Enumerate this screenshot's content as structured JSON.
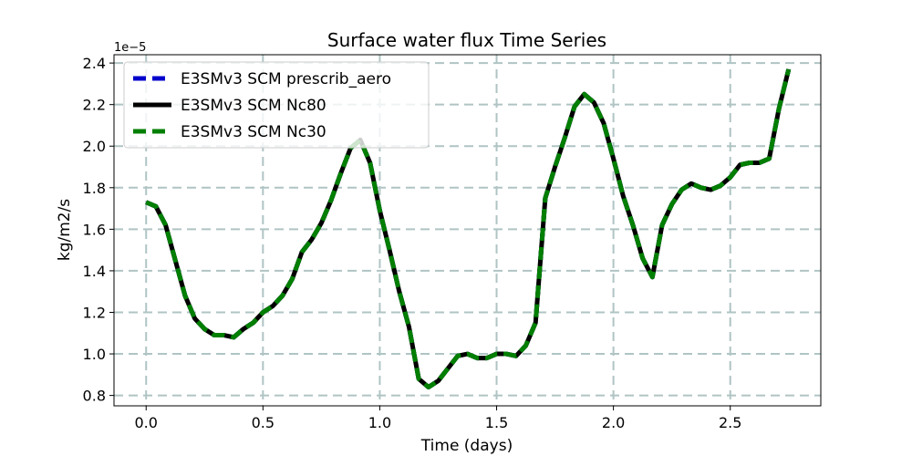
{
  "chart_data": {
    "type": "line",
    "title": "Surface water flux Time Series",
    "xlabel": "Time (days)",
    "ylabel": "kg/m2/s",
    "y_offset_label": "1e−5",
    "xlim": [
      -0.1375,
      2.8875
    ],
    "ylim": [
      0.75,
      2.44
    ],
    "xticks": [
      0.0,
      0.5,
      1.0,
      1.5,
      2.0,
      2.5
    ],
    "xtick_labels": [
      "0.0",
      "0.5",
      "1.0",
      "1.5",
      "2.0",
      "2.5"
    ],
    "yticks": [
      0.8,
      1.0,
      1.2,
      1.4,
      1.6,
      1.8,
      2.0,
      2.2,
      2.4
    ],
    "ytick_labels": [
      "0.8",
      "1.0",
      "1.2",
      "1.4",
      "1.6",
      "1.8",
      "2.0",
      "2.2",
      "2.4"
    ],
    "grid": true,
    "legend_position": "top-left",
    "x": [
      0.0,
      0.04167,
      0.08333,
      0.125,
      0.16667,
      0.20833,
      0.25,
      0.29167,
      0.33333,
      0.375,
      0.41667,
      0.45833,
      0.5,
      0.54167,
      0.58333,
      0.625,
      0.66667,
      0.70833,
      0.75,
      0.79167,
      0.83333,
      0.875,
      0.91667,
      0.95833,
      1.0,
      1.04167,
      1.08333,
      1.125,
      1.16667,
      1.20833,
      1.25,
      1.29167,
      1.33333,
      1.375,
      1.41667,
      1.45833,
      1.5,
      1.54167,
      1.58333,
      1.625,
      1.66667,
      1.70833,
      1.75,
      1.79167,
      1.83333,
      1.875,
      1.91667,
      1.95833,
      2.0,
      2.04167,
      2.08333,
      2.125,
      2.16667,
      2.20833,
      2.25,
      2.29167,
      2.33333,
      2.375,
      2.41667,
      2.45833,
      2.5,
      2.54167,
      2.58333,
      2.625,
      2.66667,
      2.70833,
      2.75
    ],
    "series": [
      {
        "name": "E3SMv3 SCM prescrib_aero",
        "color": "#0000cc",
        "style": "dashed",
        "values": [
          1.73,
          1.71,
          1.62,
          1.45,
          1.28,
          1.17,
          1.12,
          1.09,
          1.09,
          1.08,
          1.12,
          1.15,
          1.2,
          1.23,
          1.28,
          1.36,
          1.49,
          1.55,
          1.63,
          1.74,
          1.87,
          1.99,
          2.03,
          1.92,
          1.69,
          1.5,
          1.3,
          1.13,
          0.88,
          0.84,
          0.87,
          0.93,
          0.99,
          1.0,
          0.98,
          0.98,
          1.0,
          1.0,
          0.99,
          1.04,
          1.15,
          1.75,
          1.9,
          2.04,
          2.19,
          2.25,
          2.21,
          2.11,
          1.94,
          1.76,
          1.62,
          1.46,
          1.37,
          1.62,
          1.72,
          1.79,
          1.82,
          1.8,
          1.79,
          1.81,
          1.85,
          1.91,
          1.92,
          1.92,
          1.94,
          2.18,
          2.37
        ]
      },
      {
        "name": "E3SMv3 SCM Nc80",
        "color": "#000000",
        "style": "solid",
        "values": [
          1.73,
          1.71,
          1.62,
          1.45,
          1.28,
          1.17,
          1.12,
          1.09,
          1.09,
          1.08,
          1.12,
          1.15,
          1.2,
          1.23,
          1.28,
          1.36,
          1.49,
          1.55,
          1.63,
          1.74,
          1.87,
          1.99,
          2.03,
          1.92,
          1.69,
          1.5,
          1.3,
          1.13,
          0.88,
          0.84,
          0.87,
          0.93,
          0.99,
          1.0,
          0.98,
          0.98,
          1.0,
          1.0,
          0.99,
          1.04,
          1.15,
          1.75,
          1.9,
          2.04,
          2.19,
          2.25,
          2.21,
          2.11,
          1.94,
          1.76,
          1.62,
          1.46,
          1.37,
          1.62,
          1.72,
          1.79,
          1.82,
          1.8,
          1.79,
          1.81,
          1.85,
          1.91,
          1.92,
          1.92,
          1.94,
          2.18,
          2.37
        ]
      },
      {
        "name": "E3SMv3 SCM Nc30",
        "color": "#007f00",
        "style": "dashed",
        "values": [
          1.73,
          1.71,
          1.62,
          1.45,
          1.28,
          1.17,
          1.12,
          1.09,
          1.09,
          1.08,
          1.12,
          1.15,
          1.2,
          1.23,
          1.28,
          1.36,
          1.49,
          1.55,
          1.63,
          1.74,
          1.87,
          1.99,
          2.03,
          1.92,
          1.69,
          1.5,
          1.3,
          1.13,
          0.88,
          0.84,
          0.87,
          0.93,
          0.99,
          1.0,
          0.98,
          0.98,
          1.0,
          1.0,
          0.99,
          1.04,
          1.15,
          1.75,
          1.9,
          2.04,
          2.19,
          2.25,
          2.21,
          2.11,
          1.94,
          1.76,
          1.62,
          1.46,
          1.37,
          1.62,
          1.72,
          1.79,
          1.82,
          1.8,
          1.79,
          1.81,
          1.85,
          1.91,
          1.92,
          1.92,
          1.94,
          2.18,
          2.37
        ]
      }
    ]
  }
}
